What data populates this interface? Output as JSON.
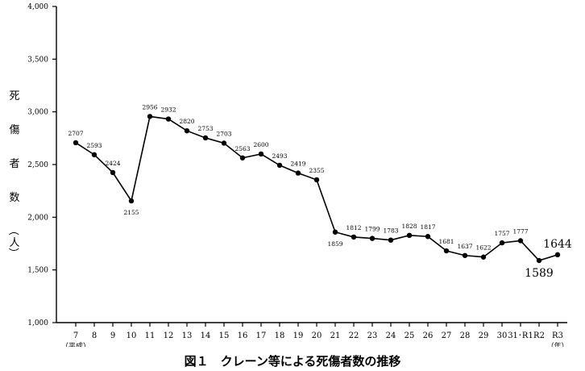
{
  "chart_data": {
    "type": "line",
    "title": "図１　クレーン等による死傷者数の推移",
    "ylabel": "死傷者数（人）",
    "xlabel_sub": "（平成）",
    "xunit": "（年）",
    "ylim": [
      1000,
      4000
    ],
    "yticks": [
      "1,000",
      "1,500",
      "2,000",
      "2,500",
      "3,000",
      "3,500",
      "4,000"
    ],
    "ytick_values": [
      1000,
      1500,
      2000,
      2500,
      3000,
      3500,
      4000
    ],
    "categories": [
      "7",
      "8",
      "9",
      "10",
      "11",
      "12",
      "13",
      "14",
      "15",
      "16",
      "17",
      "18",
      "19",
      "20",
      "21",
      "22",
      "23",
      "24",
      "25",
      "26",
      "27",
      "28",
      "29",
      "30",
      "31･R1",
      "R2",
      "R3"
    ],
    "values": [
      2707,
      2593,
      2424,
      2155,
      2956,
      2932,
      2820,
      2753,
      2703,
      2563,
      2600,
      2493,
      2419,
      2355,
      1859,
      1812,
      1799,
      1783,
      1828,
      1817,
      1681,
      1637,
      1622,
      1757,
      1777,
      1589,
      1644
    ],
    "labels": [
      "2707",
      "2593",
      "2424",
      "2155",
      "2956",
      "2932",
      "2820",
      "2753",
      "2703",
      "2563",
      "2600",
      "2493",
      "2419",
      "2355",
      "1859",
      "1812",
      "1799",
      "1783",
      "1828",
      "1817",
      "1681",
      "1637",
      "1622",
      "1757",
      "1777",
      "1589",
      "1644"
    ],
    "grid": false,
    "line_color": "#000000"
  }
}
